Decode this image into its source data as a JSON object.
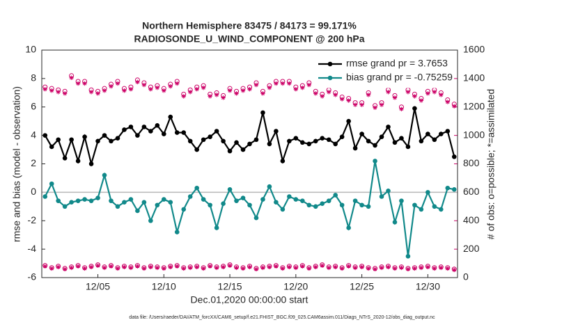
{
  "chart_data": {
    "type": "line",
    "title": "Northern Hemisphere 83475 / 84173 = 99.171%",
    "subtitle": "RADIOSONDE_U_WIND_COMPONENT @ 200 hPa",
    "xlabel": "Dec.01,2020 00:00:00 start",
    "ylabel": "rmse and bias (model - observation)",
    "y2label": "# of obs: o=possible; *=assimilated",
    "footnote": "data file: /Users/raeder/DAI/ATM_forcXX/CAM6_setup/f.e21.FHIST_BGC.f09_025.CAM6assim.011/Diags_NTrS_2020-12/obs_diag_output.nc",
    "xlim": [
      -0.25,
      31.25
    ],
    "xticks": [
      {
        "value": 4,
        "label": "12/05"
      },
      {
        "value": 9,
        "label": "12/10"
      },
      {
        "value": 14,
        "label": "12/15"
      },
      {
        "value": 19,
        "label": "12/20"
      },
      {
        "value": 24,
        "label": "12/25"
      },
      {
        "value": 29,
        "label": "12/30"
      }
    ],
    "ylim": [
      -6,
      10
    ],
    "yticks": [
      -6,
      -4,
      -2,
      0,
      2,
      4,
      6,
      8,
      10
    ],
    "y2lim": [
      0,
      1600
    ],
    "y2ticks": [
      0,
      200,
      400,
      600,
      800,
      1000,
      1200,
      1400,
      1600
    ],
    "y2color": "#cc0066",
    "reference_line": 0,
    "legend": "upper right",
    "x": [
      0,
      0.5,
      1,
      1.5,
      2,
      2.5,
      3,
      3.5,
      4,
      4.5,
      5,
      5.5,
      6,
      6.5,
      7,
      7.5,
      8,
      8.5,
      9,
      9.5,
      10,
      10.5,
      11,
      11.5,
      12,
      12.5,
      13,
      13.5,
      14,
      14.5,
      15,
      15.5,
      16,
      16.5,
      17,
      17.5,
      18,
      18.5,
      19,
      19.5,
      20,
      20.5,
      21,
      21.5,
      22,
      22.5,
      23,
      23.5,
      24,
      24.5,
      25,
      25.5,
      26,
      26.5,
      27,
      27.5,
      28,
      28.5,
      29,
      29.5,
      30,
      30.5,
      31
    ],
    "series": [
      {
        "name": "rmse grand pr = 3.7653",
        "color": "#000000",
        "marker": "dot",
        "values": [
          4.0,
          3.2,
          3.7,
          2.4,
          3.7,
          2.2,
          3.9,
          2.0,
          3.6,
          4.0,
          3.6,
          3.8,
          4.4,
          4.6,
          4.0,
          4.6,
          4.3,
          4.7,
          4.1,
          5.3,
          4.2,
          4.2,
          3.6,
          3.0,
          3.7,
          3.9,
          4.3,
          3.6,
          2.9,
          3.5,
          3.0,
          3.4,
          3.7,
          5.6,
          3.4,
          4.3,
          2.2,
          3.6,
          3.8,
          3.5,
          3.4,
          3.6,
          3.8,
          3.7,
          3.4,
          3.9,
          5.0,
          3.1,
          4.1,
          3.6,
          3.3,
          3.9,
          4.6,
          3.5,
          3.8,
          3.2,
          5.9,
          3.6,
          4.1,
          3.7,
          4.1,
          4.3,
          2.5
        ]
      },
      {
        "name": "bias grand pr = -0.75259",
        "color": "#11898a",
        "marker": "dot",
        "values": [
          -0.3,
          0.6,
          -0.6,
          -1.0,
          -0.7,
          -0.6,
          -0.5,
          -0.6,
          -0.4,
          1.2,
          -0.6,
          -1.0,
          -0.7,
          -0.5,
          -1.3,
          -0.7,
          -2.0,
          -0.9,
          -0.5,
          -0.7,
          -2.8,
          -1.2,
          -0.3,
          0.3,
          -0.5,
          -0.9,
          -2.5,
          -0.8,
          0.2,
          -0.6,
          -0.4,
          -0.9,
          -1.8,
          -0.5,
          0.4,
          -0.7,
          -1.2,
          -0.3,
          -0.5,
          -0.6,
          -0.9,
          -1.0,
          -0.8,
          -0.6,
          -0.2,
          -0.9,
          -2.5,
          -0.6,
          -0.9,
          -1.0,
          2.2,
          -0.3,
          0.1,
          -2.1,
          -0.6,
          -4.5,
          -0.9,
          -1.2,
          0.0,
          -1.0,
          -1.2,
          0.3,
          0.2
        ]
      },
      {
        "color": "#cc0066",
        "marker": "circle",
        "axis": "y2",
        "line": false,
        "values": [
          1340,
          1330,
          1320,
          1310,
          1420,
          1380,
          1380,
          1320,
          1310,
          1330,
          1360,
          1380,
          1330,
          1340,
          1390,
          1370,
          1340,
          1350,
          1330,
          1360,
          1380,
          1290,
          1320,
          1340,
          1350,
          1290,
          1300,
          1280,
          1330,
          1310,
          1330,
          1340,
          1370,
          1310,
          1350,
          1380,
          1380,
          1380,
          1340,
          1350,
          1370,
          1310,
          1290,
          1320,
          1300,
          1270,
          1260,
          1230,
          1230,
          1300,
          1210,
          1230,
          1320,
          1280,
          1200,
          1320,
          1290,
          1260,
          1310,
          1320,
          1300,
          1250,
          1220
        ]
      },
      {
        "color": "#cc0066",
        "marker": "star",
        "axis": "y2",
        "line": false,
        "values": [
          1325,
          1315,
          1305,
          1295,
          1405,
          1365,
          1365,
          1305,
          1295,
          1315,
          1345,
          1365,
          1315,
          1325,
          1375,
          1355,
          1325,
          1335,
          1315,
          1345,
          1365,
          1275,
          1305,
          1325,
          1335,
          1275,
          1285,
          1265,
          1315,
          1295,
          1315,
          1325,
          1355,
          1295,
          1335,
          1365,
          1365,
          1365,
          1325,
          1335,
          1355,
          1295,
          1275,
          1305,
          1285,
          1255,
          1245,
          1215,
          1215,
          1285,
          1195,
          1215,
          1305,
          1265,
          1185,
          1305,
          1275,
          1245,
          1295,
          1305,
          1285,
          1235,
          1205
        ]
      },
      {
        "color": "#cc0066",
        "marker": "circle",
        "axis": "y2",
        "line": false,
        "values": [
          85,
          70,
          80,
          65,
          75,
          85,
          70,
          80,
          90,
          75,
          85,
          70,
          80,
          75,
          85,
          70,
          80,
          75,
          70,
          80,
          85,
          70,
          75,
          80,
          70,
          85,
          75,
          80,
          90,
          75,
          70,
          80,
          65,
          75,
          80,
          85,
          70,
          80,
          75,
          85,
          70,
          80,
          90,
          75,
          80,
          70,
          85,
          75,
          80,
          70,
          65,
          75,
          80,
          70,
          75,
          65,
          70,
          75,
          80,
          70,
          75,
          70,
          60
        ]
      },
      {
        "color": "#cc0066",
        "marker": "star",
        "axis": "y2",
        "line": false,
        "values": [
          79,
          64,
          74,
          59,
          69,
          79,
          64,
          74,
          84,
          69,
          79,
          64,
          74,
          69,
          79,
          64,
          74,
          69,
          64,
          74,
          79,
          64,
          69,
          74,
          64,
          79,
          69,
          74,
          84,
          69,
          64,
          74,
          59,
          69,
          74,
          79,
          64,
          74,
          69,
          79,
          64,
          74,
          84,
          69,
          74,
          64,
          79,
          69,
          74,
          64,
          59,
          69,
          74,
          64,
          69,
          59,
          64,
          69,
          74,
          64,
          69,
          64,
          54
        ]
      }
    ]
  }
}
